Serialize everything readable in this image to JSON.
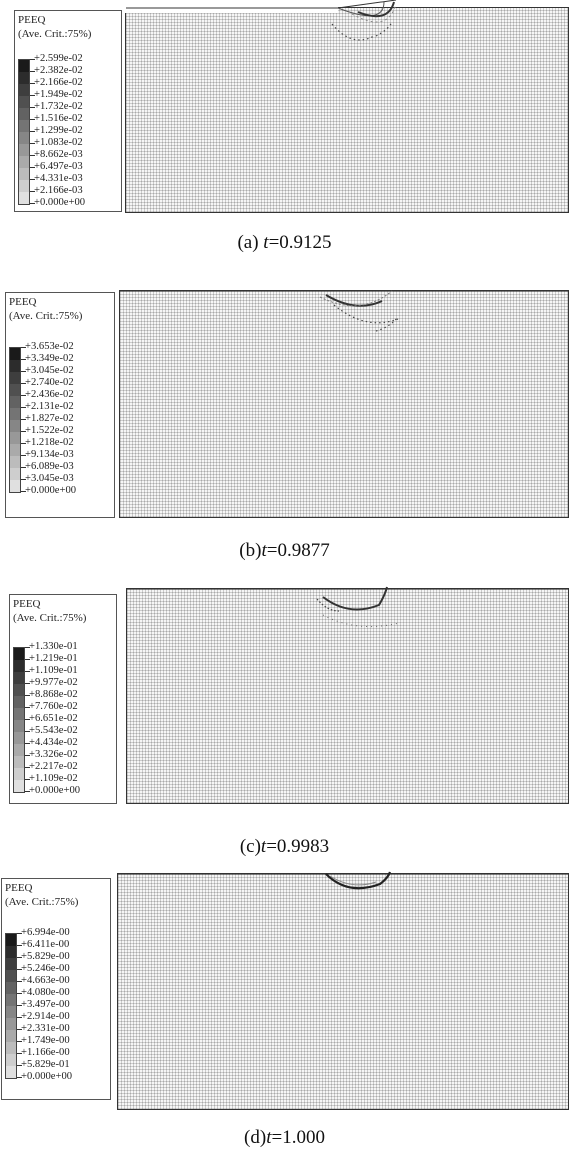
{
  "panels": [
    {
      "caption_prefix": "(a) ",
      "caption_var": "t",
      "caption_value": "=0.9125",
      "legend": {
        "title": "PEEQ",
        "subtitle": "(Ave. Crit.:75%)",
        "values": [
          "+2.599e-02",
          "+2.382e-02",
          "+2.166e-02",
          "+1.949e-02",
          "+1.732e-02",
          "+1.516e-02",
          "+1.299e-02",
          "+1.083e-02",
          "+8.662e-03",
          "+6.497e-03",
          "+4.331e-03",
          "+2.166e-03",
          "+0.000e+00"
        ]
      }
    },
    {
      "caption_prefix": "(b)",
      "caption_var": "t",
      "caption_value": "=0.9877",
      "legend": {
        "title": "PEEQ",
        "subtitle": "(Ave. Crit.:75%)",
        "values": [
          "+3.653e-02",
          "+3.349e-02",
          "+3.045e-02",
          "+2.740e-02",
          "+2.436e-02",
          "+2.131e-02",
          "+1.827e-02",
          "+1.522e-02",
          "+1.218e-02",
          "+9.134e-03",
          "+6.089e-03",
          "+3.045e-03",
          "+0.000e+00"
        ]
      }
    },
    {
      "caption_prefix": "(c)",
      "caption_var": "t",
      "caption_value": "=0.9983",
      "legend": {
        "title": "PEEQ",
        "subtitle": "(Ave. Crit.:75%)",
        "values": [
          "+1.330e-01",
          "+1.219e-01",
          "+1.109e-01",
          "+9.977e-02",
          "+8.868e-02",
          "+7.760e-02",
          "+6.651e-02",
          "+5.543e-02",
          "+4.434e-02",
          "+3.326e-02",
          "+2.217e-02",
          "+1.109e-02",
          "+0.000e+00"
        ]
      }
    },
    {
      "caption_prefix": "(d)",
      "caption_var": "t",
      "caption_value": "=1.000",
      "legend": {
        "title": "PEEQ",
        "subtitle": "(Ave. Crit.:75%)",
        "values": [
          "+6.994e-00",
          "+6.411e-00",
          "+5.829e-00",
          "+5.246e-00",
          "+4.663e-00",
          "+4.080e-00",
          "+3.497e-00",
          "+2.914e-00",
          "+2.331e-00",
          "+1.749e-00",
          "+1.166e-00",
          "+5.829e-01",
          "+0.000e+00"
        ]
      }
    }
  ],
  "colors": {
    "colorbar": [
      "#1a1a1a",
      "#2c2c2c",
      "#3e3e3e",
      "#505050",
      "#626262",
      "#747474",
      "#868686",
      "#989898",
      "#aaaaaa",
      "#bcbcbc",
      "#cecece",
      "#e0e0e0"
    ]
  }
}
